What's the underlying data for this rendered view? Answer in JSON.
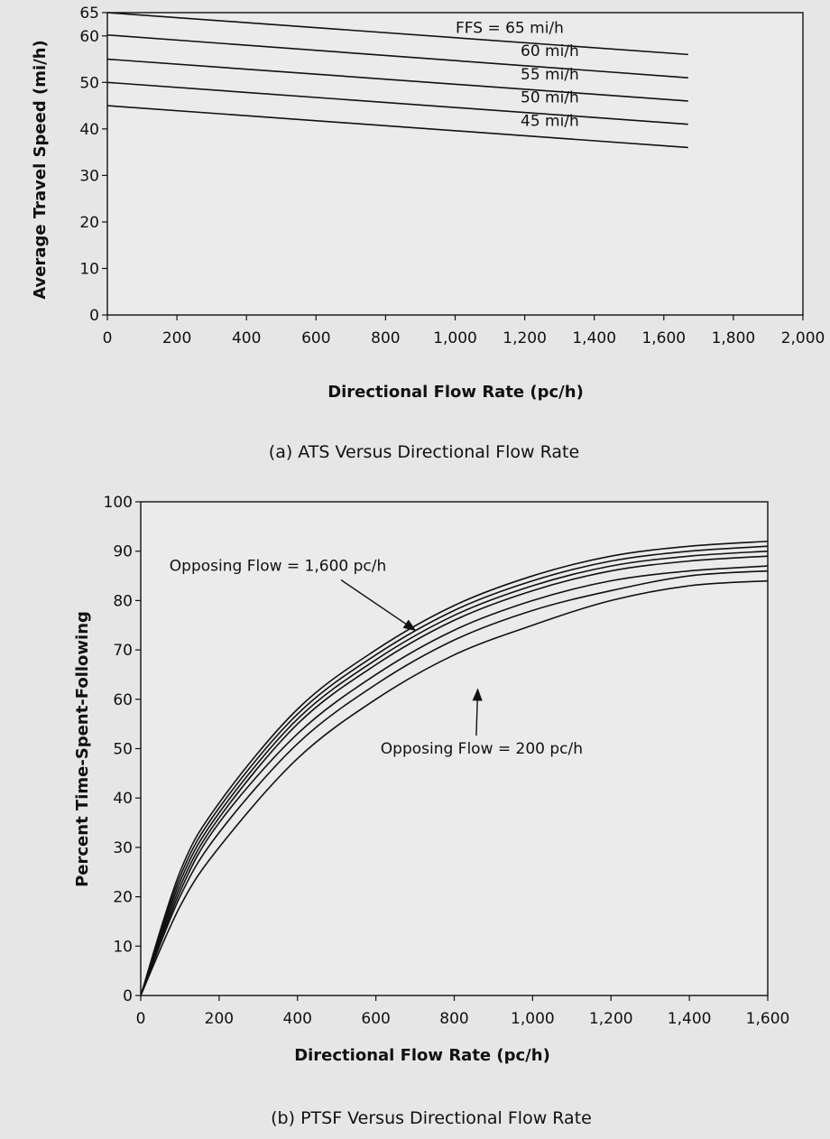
{
  "chart_data": [
    {
      "type": "line",
      "title": "",
      "xlabel": "Directional Flow Rate (pc/h)",
      "ylabel": "Average Travel Speed (mi/h)",
      "caption": "(a) ATS Versus Directional Flow Rate",
      "xlim": [
        0,
        2000
      ],
      "ylim": [
        0,
        65
      ],
      "xticks": [
        0,
        200,
        400,
        600,
        800,
        1000,
        1200,
        1400,
        1600,
        1800,
        2000
      ],
      "xtick_labels": [
        "0",
        "200",
        "400",
        "600",
        "800",
        "1,000",
        "1,200",
        "1,400",
        "1,600",
        "1,800",
        "2,000"
      ],
      "yticks": [
        0,
        10,
        20,
        30,
        40,
        50,
        60,
        65
      ],
      "ytick_labels": [
        "0",
        "10",
        "20",
        "30",
        "40",
        "50",
        "60",
        "65"
      ],
      "grid": false,
      "series": [
        {
          "name": "FFS = 65 mi/h",
          "x": [
            0,
            1670
          ],
          "y": [
            65,
            56
          ]
        },
        {
          "name": "60 mi/h",
          "x": [
            0,
            1670
          ],
          "y": [
            60.2,
            51
          ]
        },
        {
          "name": "55 mi/h",
          "x": [
            0,
            1670
          ],
          "y": [
            55,
            46
          ]
        },
        {
          "name": "50 mi/h",
          "x": [
            0,
            1670
          ],
          "y": [
            50,
            41
          ]
        },
        {
          "name": "45 mi/h",
          "x": [
            0,
            1670
          ],
          "y": [
            45,
            36
          ]
        }
      ]
    },
    {
      "type": "line",
      "title": "",
      "xlabel": "Directional Flow Rate (pc/h)",
      "ylabel": "Percent Time-Spent-Following",
      "caption": "(b) PTSF Versus Directional Flow Rate",
      "xlim": [
        0,
        1600
      ],
      "ylim": [
        0,
        100
      ],
      "xticks": [
        0,
        200,
        400,
        600,
        800,
        1000,
        1200,
        1400,
        1600
      ],
      "xtick_labels": [
        "0",
        "200",
        "400",
        "600",
        "800",
        "1,000",
        "1,200",
        "1,400",
        "1,600"
      ],
      "yticks": [
        0,
        10,
        20,
        30,
        40,
        50,
        60,
        70,
        80,
        90,
        100
      ],
      "ytick_labels": [
        "0",
        "10",
        "20",
        "30",
        "40",
        "50",
        "60",
        "70",
        "80",
        "90",
        "100"
      ],
      "grid": false,
      "series": [
        {
          "x": [
            0,
            100,
            200,
            400,
            600,
            800,
            1000,
            1200,
            1400,
            1600
          ],
          "y": [
            0,
            18,
            30,
            48,
            60,
            69,
            75,
            80,
            83,
            84
          ]
        },
        {
          "x": [
            0,
            100,
            200,
            400,
            600,
            800,
            1000,
            1200,
            1400,
            1600
          ],
          "y": [
            0,
            20,
            33,
            51,
            63,
            72,
            78,
            82,
            85,
            86
          ]
        },
        {
          "x": [
            0,
            100,
            200,
            400,
            600,
            800,
            1000,
            1200,
            1400,
            1600
          ],
          "y": [
            0,
            21,
            35,
            53,
            65,
            74,
            80,
            84,
            86,
            87
          ]
        },
        {
          "x": [
            0,
            100,
            200,
            400,
            600,
            800,
            1000,
            1200,
            1400,
            1600
          ],
          "y": [
            0,
            22,
            36,
            55,
            67,
            76,
            82,
            86,
            88,
            89
          ]
        },
        {
          "x": [
            0,
            100,
            200,
            400,
            600,
            800,
            1000,
            1200,
            1400,
            1600
          ],
          "y": [
            0,
            23,
            37,
            56,
            68,
            77,
            83,
            87,
            89,
            90
          ]
        },
        {
          "x": [
            0,
            100,
            200,
            400,
            600,
            800,
            1000,
            1200,
            1400,
            1600
          ],
          "y": [
            0,
            24,
            38,
            57,
            69,
            78,
            84,
            88,
            90,
            91
          ]
        },
        {
          "x": [
            0,
            100,
            200,
            400,
            600,
            800,
            1000,
            1200,
            1400,
            1600
          ],
          "y": [
            0,
            25,
            39,
            58,
            70,
            79,
            85,
            89,
            91,
            92
          ]
        }
      ],
      "annotations": [
        {
          "text": "Opposing Flow = 1,600 pc/h",
          "x": 350,
          "y": 86,
          "arrow_to": [
            700,
            74
          ]
        },
        {
          "text": "Opposing Flow = 200 pc/h",
          "x": 870,
          "y": 49,
          "arrow_to": [
            860,
            62
          ]
        }
      ]
    }
  ]
}
